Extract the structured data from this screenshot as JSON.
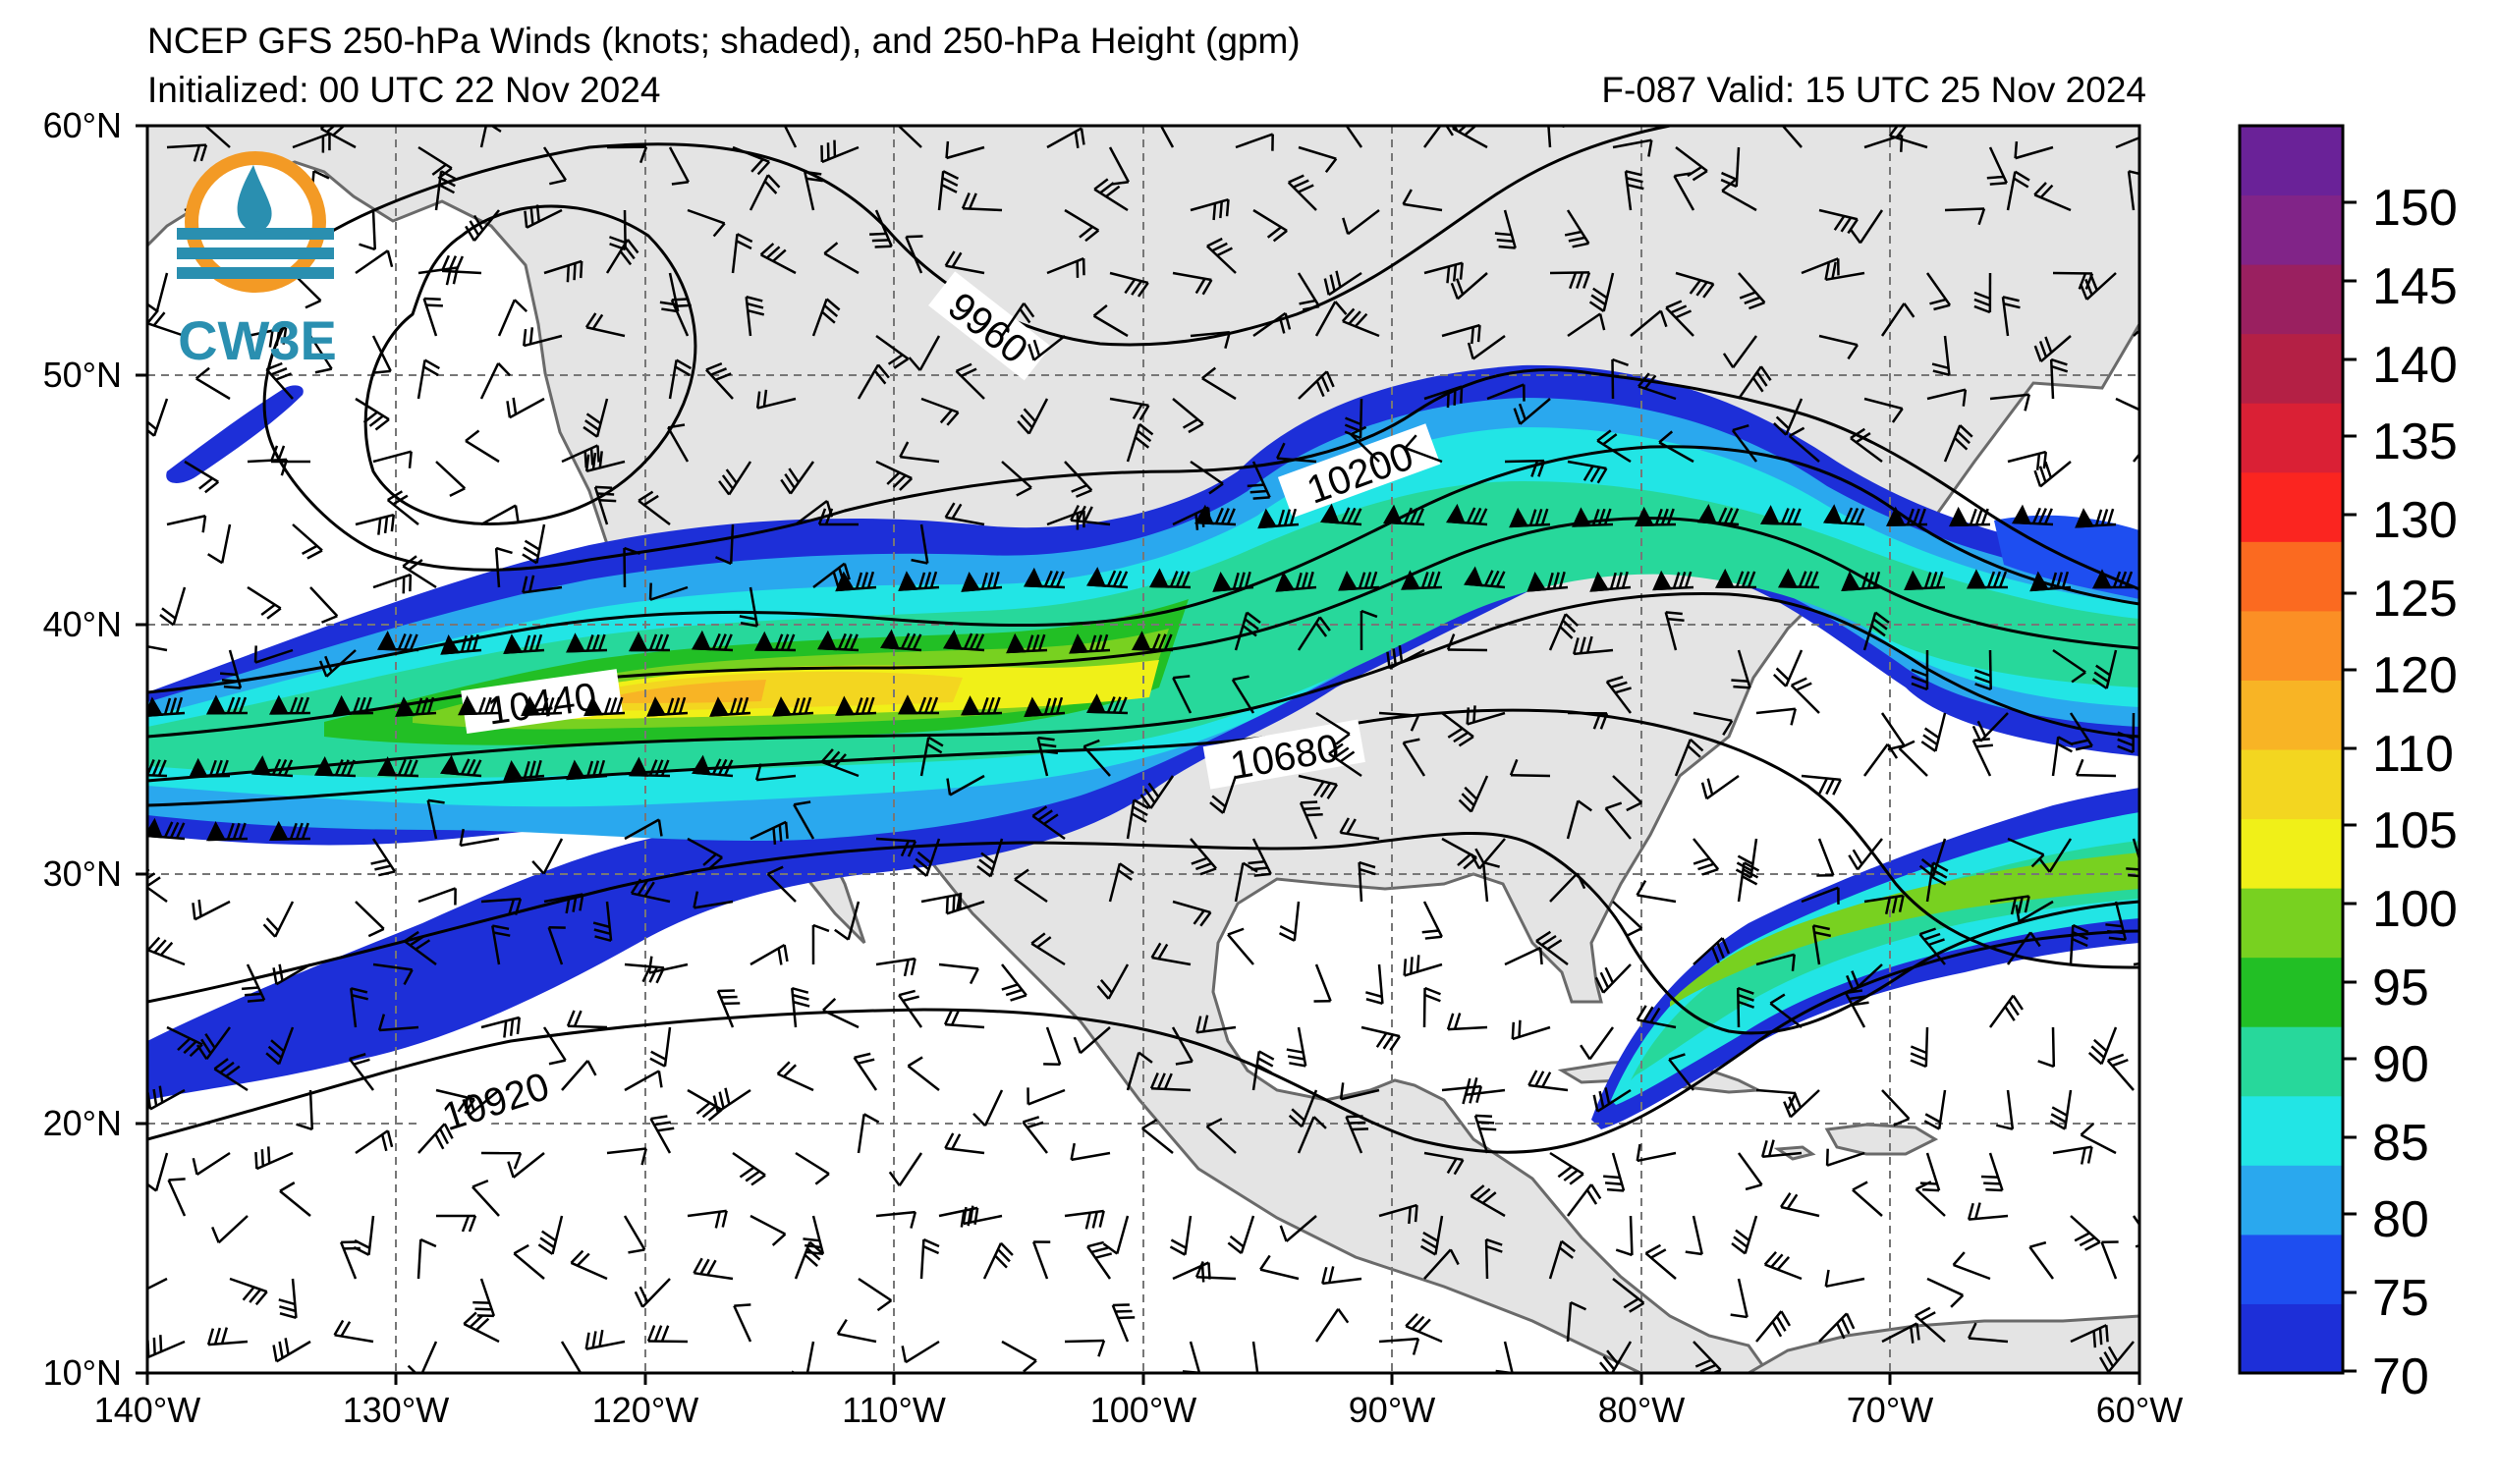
{
  "header": {
    "title": "NCEP GFS 250-hPa Winds (knots; shaded), and 250-hPa Height (gpm)",
    "initialized": "Initialized: 00 UTC 22 Nov 2024",
    "valid": "F-087  Valid: 15 UTC 25 Nov 2024"
  },
  "logo": {
    "text": "CW3E"
  },
  "map": {
    "lat_labels": [
      "60°N",
      "50°N",
      "40°N",
      "30°N",
      "20°N",
      "10°N"
    ],
    "lon_labels": [
      "140°W",
      "130°W",
      "120°W",
      "110°W",
      "100°W",
      "90°W",
      "80°W",
      "70°W",
      "60°W"
    ],
    "extent": {
      "lon_min": -140,
      "lon_max": -60,
      "lat_min": 10,
      "lat_max": 60
    },
    "contour_labels": [
      "9960",
      "10200",
      "10440",
      "10680",
      "10920"
    ]
  },
  "colorbar": {
    "labels": [
      "150",
      "145",
      "140",
      "135",
      "130",
      "125",
      "120",
      "110",
      "105",
      "100",
      "95",
      "90",
      "85",
      "80",
      "75",
      "70"
    ],
    "colors": [
      "#1d2fd8",
      "#1e4ef0",
      "#2aa8ee",
      "#22e5e5",
      "#27d89b",
      "#22bf25",
      "#78d120",
      "#f0f018",
      "#f3d620",
      "#f8b425",
      "#fb8f25",
      "#fb6a20",
      "#fb2520",
      "#da2035",
      "#b42045",
      "#9a2060",
      "#812488",
      "#6a2298"
    ]
  },
  "colors": {
    "land": "#e4e4e4",
    "ocean": "#ffffff",
    "coast": "#6a6a6a",
    "grid": "#777777",
    "logo_blue": "#2a8fb0",
    "logo_orange": "#f39a25"
  }
}
